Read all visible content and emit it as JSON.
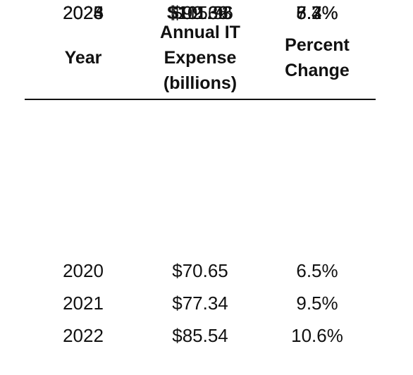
{
  "table": {
    "headers": {
      "year": [
        "Year"
      ],
      "expense": [
        "Annual IT",
        "Expense",
        "(billions)"
      ],
      "percent": [
        "Percent",
        "Change"
      ]
    },
    "rows": [
      {
        "year": "2020",
        "expense": "$70.65",
        "percent": "6.5%"
      },
      {
        "year": "2021",
        "expense": "$77.34",
        "percent": "9.5%"
      },
      {
        "year": "2022",
        "expense": "$85.54",
        "percent": "10.6%"
      },
      {
        "year": "2023",
        "expense": "$92.66",
        "percent": "8.3%"
      },
      {
        "year": "2024",
        "expense": "$99.32",
        "percent": "7.2%"
      },
      {
        "year": "2025",
        "expense": "$105.96",
        "percent": "6.7%"
      },
      {
        "year": "2026",
        "expense": "$111.73",
        "percent": "5.4%"
      }
    ]
  },
  "chart_data": {
    "type": "table",
    "columns": [
      "Year",
      "Annual IT Expense (billions)",
      "Percent Change"
    ],
    "x": [
      2020,
      2021,
      2022,
      2023,
      2024,
      2025,
      2026
    ],
    "series": [
      {
        "name": "Annual IT Expense (billions)",
        "values": [
          70.65,
          77.34,
          85.54,
          92.66,
          99.32,
          105.96,
          111.73
        ]
      },
      {
        "name": "Percent Change",
        "values": [
          6.5,
          9.5,
          10.6,
          8.3,
          7.2,
          6.7,
          5.4
        ]
      }
    ]
  }
}
